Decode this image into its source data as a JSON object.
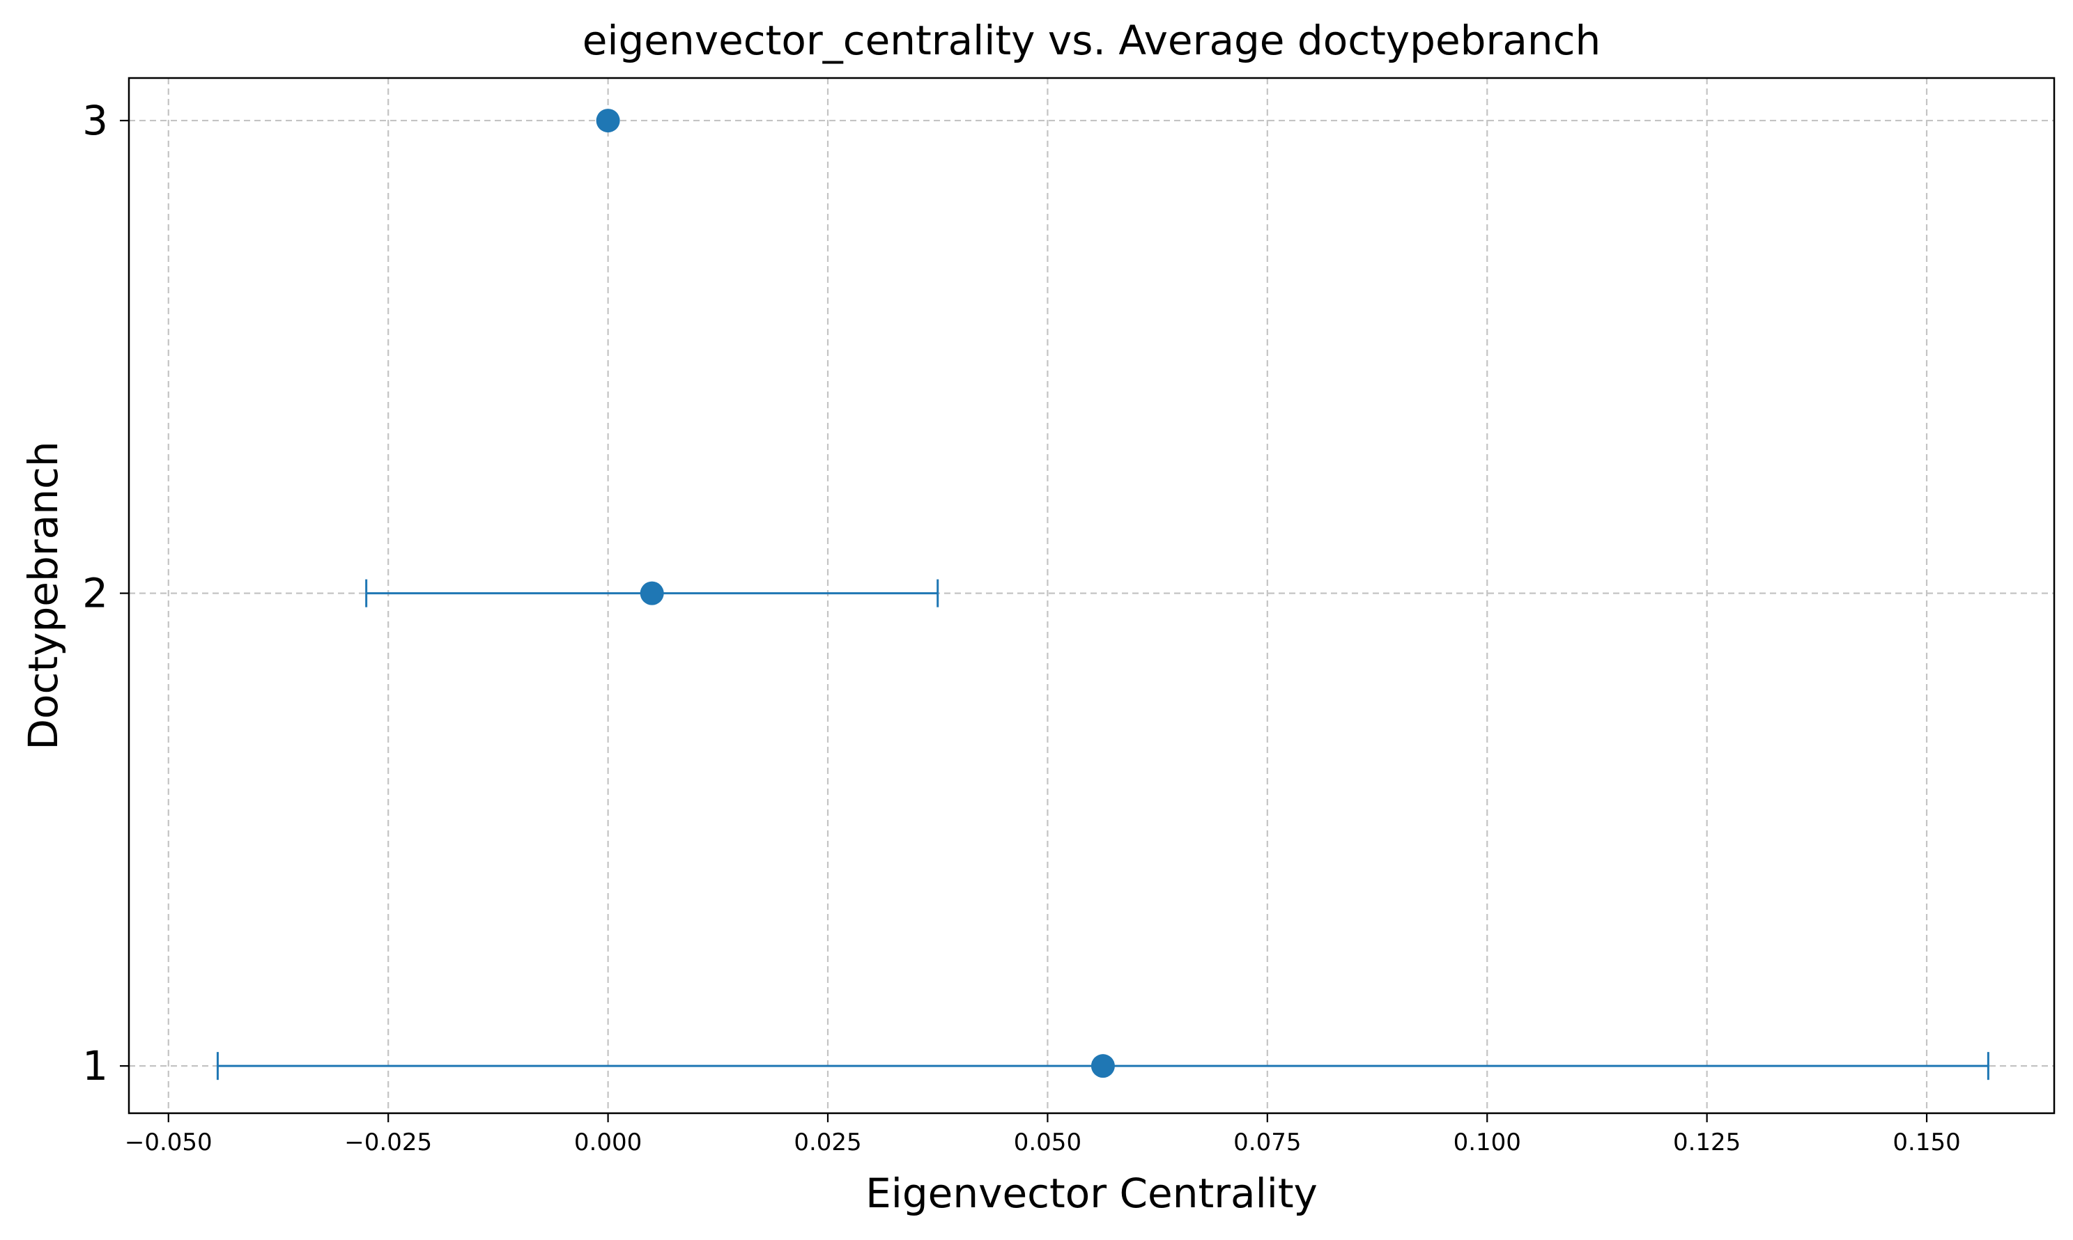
{
  "chart_data": {
    "type": "scatter",
    "title": "eigenvector_centrality vs. Average doctypebranch",
    "xlabel": "Eigenvector Centrality",
    "ylabel": "Doctypebranch",
    "xlim": [
      -0.0545,
      0.1645
    ],
    "ylim": [
      0.9,
      3.09
    ],
    "x_ticks": [
      -0.05,
      -0.025,
      0.0,
      0.025,
      0.05,
      0.075,
      0.1,
      0.125,
      0.15
    ],
    "x_tick_labels": [
      "−0.050",
      "−0.025",
      "0.000",
      "0.025",
      "0.050",
      "0.075",
      "0.100",
      "0.125",
      "0.150"
    ],
    "y_ticks": [
      1,
      2,
      3
    ],
    "y_tick_labels": [
      "1",
      "2",
      "3"
    ],
    "grid": true,
    "color": "#1f77b4",
    "points": [
      {
        "y": 3,
        "x": 0.0,
        "xerr": 0.0
      },
      {
        "y": 2,
        "x": 0.005,
        "xerr": 0.0325
      },
      {
        "y": 1,
        "x": 0.0563,
        "xerr": 0.1007
      }
    ]
  }
}
